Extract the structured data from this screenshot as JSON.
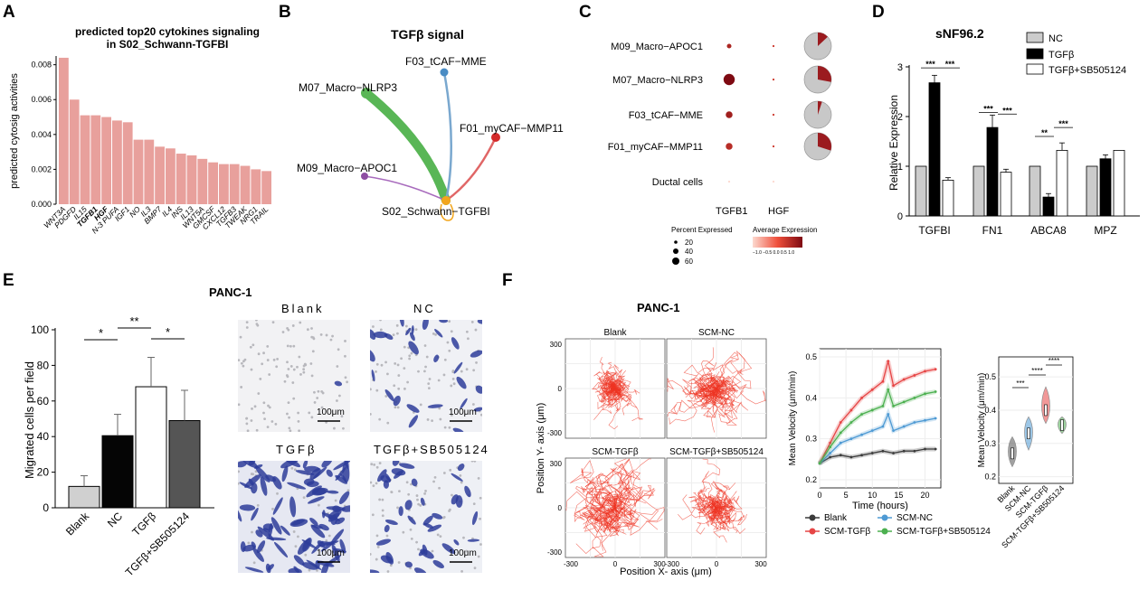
{
  "panels": {
    "A": "A",
    "B": "B",
    "C": "C",
    "D": "D",
    "E": "E",
    "F": "F"
  },
  "panelA": {
    "chart_data": {
      "type": "bar",
      "title": "predicted top20 cytokines signaling\nin S02_Schwann-TGFBI",
      "title_line1": "predicted top20 cytokines signaling",
      "title_line2": "in S02_Schwann-TGFBI",
      "ylabel": "predicted cytosig activities",
      "ylim": [
        0,
        0.0085
      ],
      "yticks": [
        "0.000",
        "0.002",
        "0.004",
        "0.006",
        "0.008"
      ],
      "ytick_values": [
        0,
        0.002,
        0.004,
        0.006,
        0.008
      ],
      "categories": [
        "WNT3A",
        "PDGFD",
        "IL15",
        "TGFB1",
        "HGF",
        "N-3 PUFA",
        "IGF1",
        "NO",
        "IL3",
        "BMP7",
        "IL4",
        "INS",
        "IL13",
        "WNT5A",
        "GMCSF",
        "CXCL12",
        "TGFB3",
        "TWEAK",
        "NRG1",
        "TRAIL"
      ],
      "bold_categories": [
        "TGFB1",
        "HGF"
      ],
      "values": [
        0.0084,
        0.006,
        0.0051,
        0.0051,
        0.005,
        0.0048,
        0.0047,
        0.0037,
        0.0037,
        0.0033,
        0.0032,
        0.0029,
        0.0028,
        0.0026,
        0.0024,
        0.0023,
        0.0023,
        0.0022,
        0.002,
        0.0019
      ],
      "bar_color": "#e8a09c"
    }
  },
  "panelB": {
    "title": "TGFβ signal",
    "nodes": [
      {
        "label": "F03_tCAF−MME",
        "color": "#4a8cc4"
      },
      {
        "label": "M07_Macro−NLRP3",
        "color": "#59b656"
      },
      {
        "label": "F01_myCAF−MMP11",
        "color": "#d42a2a"
      },
      {
        "label": "M09_Macro−APOC1",
        "color": "#8e4ea3"
      },
      {
        "label": "S02_Schwann−TGFBI",
        "color": "#f2a51c"
      }
    ]
  },
  "panelC": {
    "chart_data": {
      "type": "scatter",
      "rows": [
        "M09_Macro−APOC1",
        "M07_Macro−NLRP3",
        "F03_tCAF−MME",
        "F01_myCAF−MMP11",
        "Ductal cells"
      ],
      "columns": [
        "TGFB1",
        "HGF"
      ],
      "percent_expressed": [
        [
          10,
          2
        ],
        [
          60,
          2
        ],
        [
          22,
          2
        ],
        [
          22,
          2
        ],
        [
          2,
          2
        ]
      ],
      "average_expression": [
        [
          0.6,
          0.3
        ],
        [
          1.0,
          0.3
        ],
        [
          0.7,
          0.3
        ],
        [
          0.5,
          0.3
        ],
        [
          -1.0,
          -1.0
        ]
      ],
      "pie_fraction": [
        0.13,
        0.28,
        0.05,
        0.3,
        0
      ]
    },
    "legend_size_title": "Percent Expressed",
    "legend_size_items": [
      "20",
      "40",
      "60"
    ],
    "legend_color_title": "Average Expression",
    "legend_color_ticks": "−1.0 −0.5 0.0 0.5 1.0"
  },
  "panelD": {
    "chart_data": {
      "type": "bar",
      "title": "sNF96.2",
      "ylabel": "Relative Expression",
      "ylim": [
        0,
        3
      ],
      "yticks": [
        "0",
        "1",
        "2",
        "3"
      ],
      "categories": [
        "TGFBI",
        "FN1",
        "ABCA8",
        "MPZ"
      ],
      "series": [
        {
          "name": "NC",
          "values": [
            1.0,
            1.0,
            1.0,
            1.0
          ],
          "errors": [
            0,
            0,
            0,
            0
          ],
          "color": "#cccccc"
        },
        {
          "name": "TGFβ",
          "values": [
            2.68,
            1.78,
            0.38,
            1.15
          ],
          "errors": [
            0.15,
            0.25,
            0.07,
            0.08
          ],
          "color": "#000000"
        },
        {
          "name": "TGFβ+SB505124",
          "values": [
            0.72,
            0.88,
            1.32,
            1.32
          ],
          "errors": [
            0.05,
            0.06,
            0.15,
            0
          ],
          "color": "#ffffff"
        }
      ],
      "annotations": [
        "***",
        "***",
        "***",
        "***",
        "**",
        "***"
      ]
    }
  },
  "panelE": {
    "title": "PANC-1",
    "chart_data": {
      "type": "bar",
      "ylabel": "Migrated cells per field",
      "ylim": [
        0,
        100
      ],
      "yticks": [
        "0",
        "20",
        "40",
        "60",
        "80",
        "100"
      ],
      "categories": [
        "Blank",
        "NC",
        "TGFβ",
        "TGFβ+SB505124"
      ],
      "values": [
        12,
        40.5,
        68,
        49
      ],
      "errors": [
        6,
        12,
        16.5,
        17
      ],
      "colors": [
        "#d0d0d0",
        "#050505",
        "#ffffff",
        "#555555"
      ],
      "annotations": [
        "*",
        "**",
        "*"
      ]
    },
    "images": [
      {
        "label": "Blank",
        "scale": "100μm"
      },
      {
        "label": "NC",
        "scale": "100μm"
      },
      {
        "label": "TGFβ",
        "scale": "100μm"
      },
      {
        "label": "TGFβ+SB505124",
        "scale": "100μm"
      }
    ]
  },
  "panelF": {
    "title": "PANC-1",
    "tracks": {
      "panels": [
        "Blank",
        "SCM-NC",
        "SCM-TGFβ",
        "SCM-TGFβ+SB505124"
      ],
      "xlabel": "Position X- axis (μm)",
      "ylabel": "Position Y- axis (μm)",
      "ticks": [
        "-300",
        "0",
        "300"
      ]
    },
    "velocity": {
      "chart_data": {
        "type": "line",
        "xlabel": "Time (hours)",
        "ylabel": "Mean Velocity (μm/min)",
        "xlim": [
          0,
          23
        ],
        "ylim": [
          0.18,
          0.52
        ],
        "xticks": [
          "0",
          "5",
          "10",
          "15",
          "20"
        ],
        "yticks": [
          "0.2",
          "0.3",
          "0.4",
          "0.5"
        ],
        "series": [
          {
            "name": "Blank",
            "color": "#3a3a3a",
            "x": [
              0,
              2,
              4,
              6,
              8,
              10,
              12,
              14,
              16,
              18,
              20,
              22
            ],
            "values": [
              0.24,
              0.255,
              0.26,
              0.255,
              0.26,
              0.265,
              0.27,
              0.265,
              0.27,
              0.27,
              0.275,
              0.275
            ]
          },
          {
            "name": "SCM-TGFβ",
            "color": "#e64545",
            "x": [
              0,
              2,
              4,
              6,
              8,
              10,
              12,
              13,
              14,
              16,
              18,
              20,
              22
            ],
            "values": [
              0.24,
              0.29,
              0.34,
              0.37,
              0.4,
              0.42,
              0.44,
              0.49,
              0.43,
              0.445,
              0.455,
              0.465,
              0.47
            ]
          },
          {
            "name": "SCM-NC",
            "color": "#4e9ad4",
            "x": [
              0,
              2,
              4,
              6,
              8,
              10,
              12,
              13,
              14,
              16,
              18,
              20,
              22
            ],
            "values": [
              0.24,
              0.265,
              0.29,
              0.3,
              0.31,
              0.32,
              0.33,
              0.36,
              0.32,
              0.33,
              0.34,
              0.345,
              0.35
            ]
          },
          {
            "name": "SCM-TGFβ+SB505124",
            "color": "#4cb050",
            "x": [
              0,
              2,
              4,
              6,
              8,
              10,
              12,
              13,
              14,
              16,
              18,
              20,
              22
            ],
            "values": [
              0.24,
              0.28,
              0.315,
              0.34,
              0.36,
              0.37,
              0.38,
              0.42,
              0.38,
              0.39,
              0.4,
              0.41,
              0.415
            ]
          }
        ]
      },
      "legend": [
        "Blank",
        "SCM-TGFβ",
        "SCM-NC",
        "SCM-TGFβ+SB505124"
      ]
    },
    "violin": {
      "chart_data": {
        "type": "violin",
        "ylabel": "Mean Velocity (μm/min)",
        "ylim": [
          0.18,
          0.56
        ],
        "yticks": [
          "0.2",
          "0.3",
          "0.4",
          "0.5"
        ],
        "categories": [
          "Blank",
          "SCM-NC",
          "SCM-TGFβ",
          "SCM-TGFβ+SB505124"
        ],
        "medians": [
          0.27,
          0.33,
          0.4,
          0.355
        ],
        "ranges": [
          [
            0.23,
            0.32
          ],
          [
            0.28,
            0.38
          ],
          [
            0.36,
            0.47
          ],
          [
            0.33,
            0.38
          ]
        ],
        "colors": [
          "#555555",
          "#4e9ad4",
          "#e64545",
          "#4cb050"
        ],
        "annotations": [
          "***",
          "****",
          "****"
        ]
      }
    }
  }
}
